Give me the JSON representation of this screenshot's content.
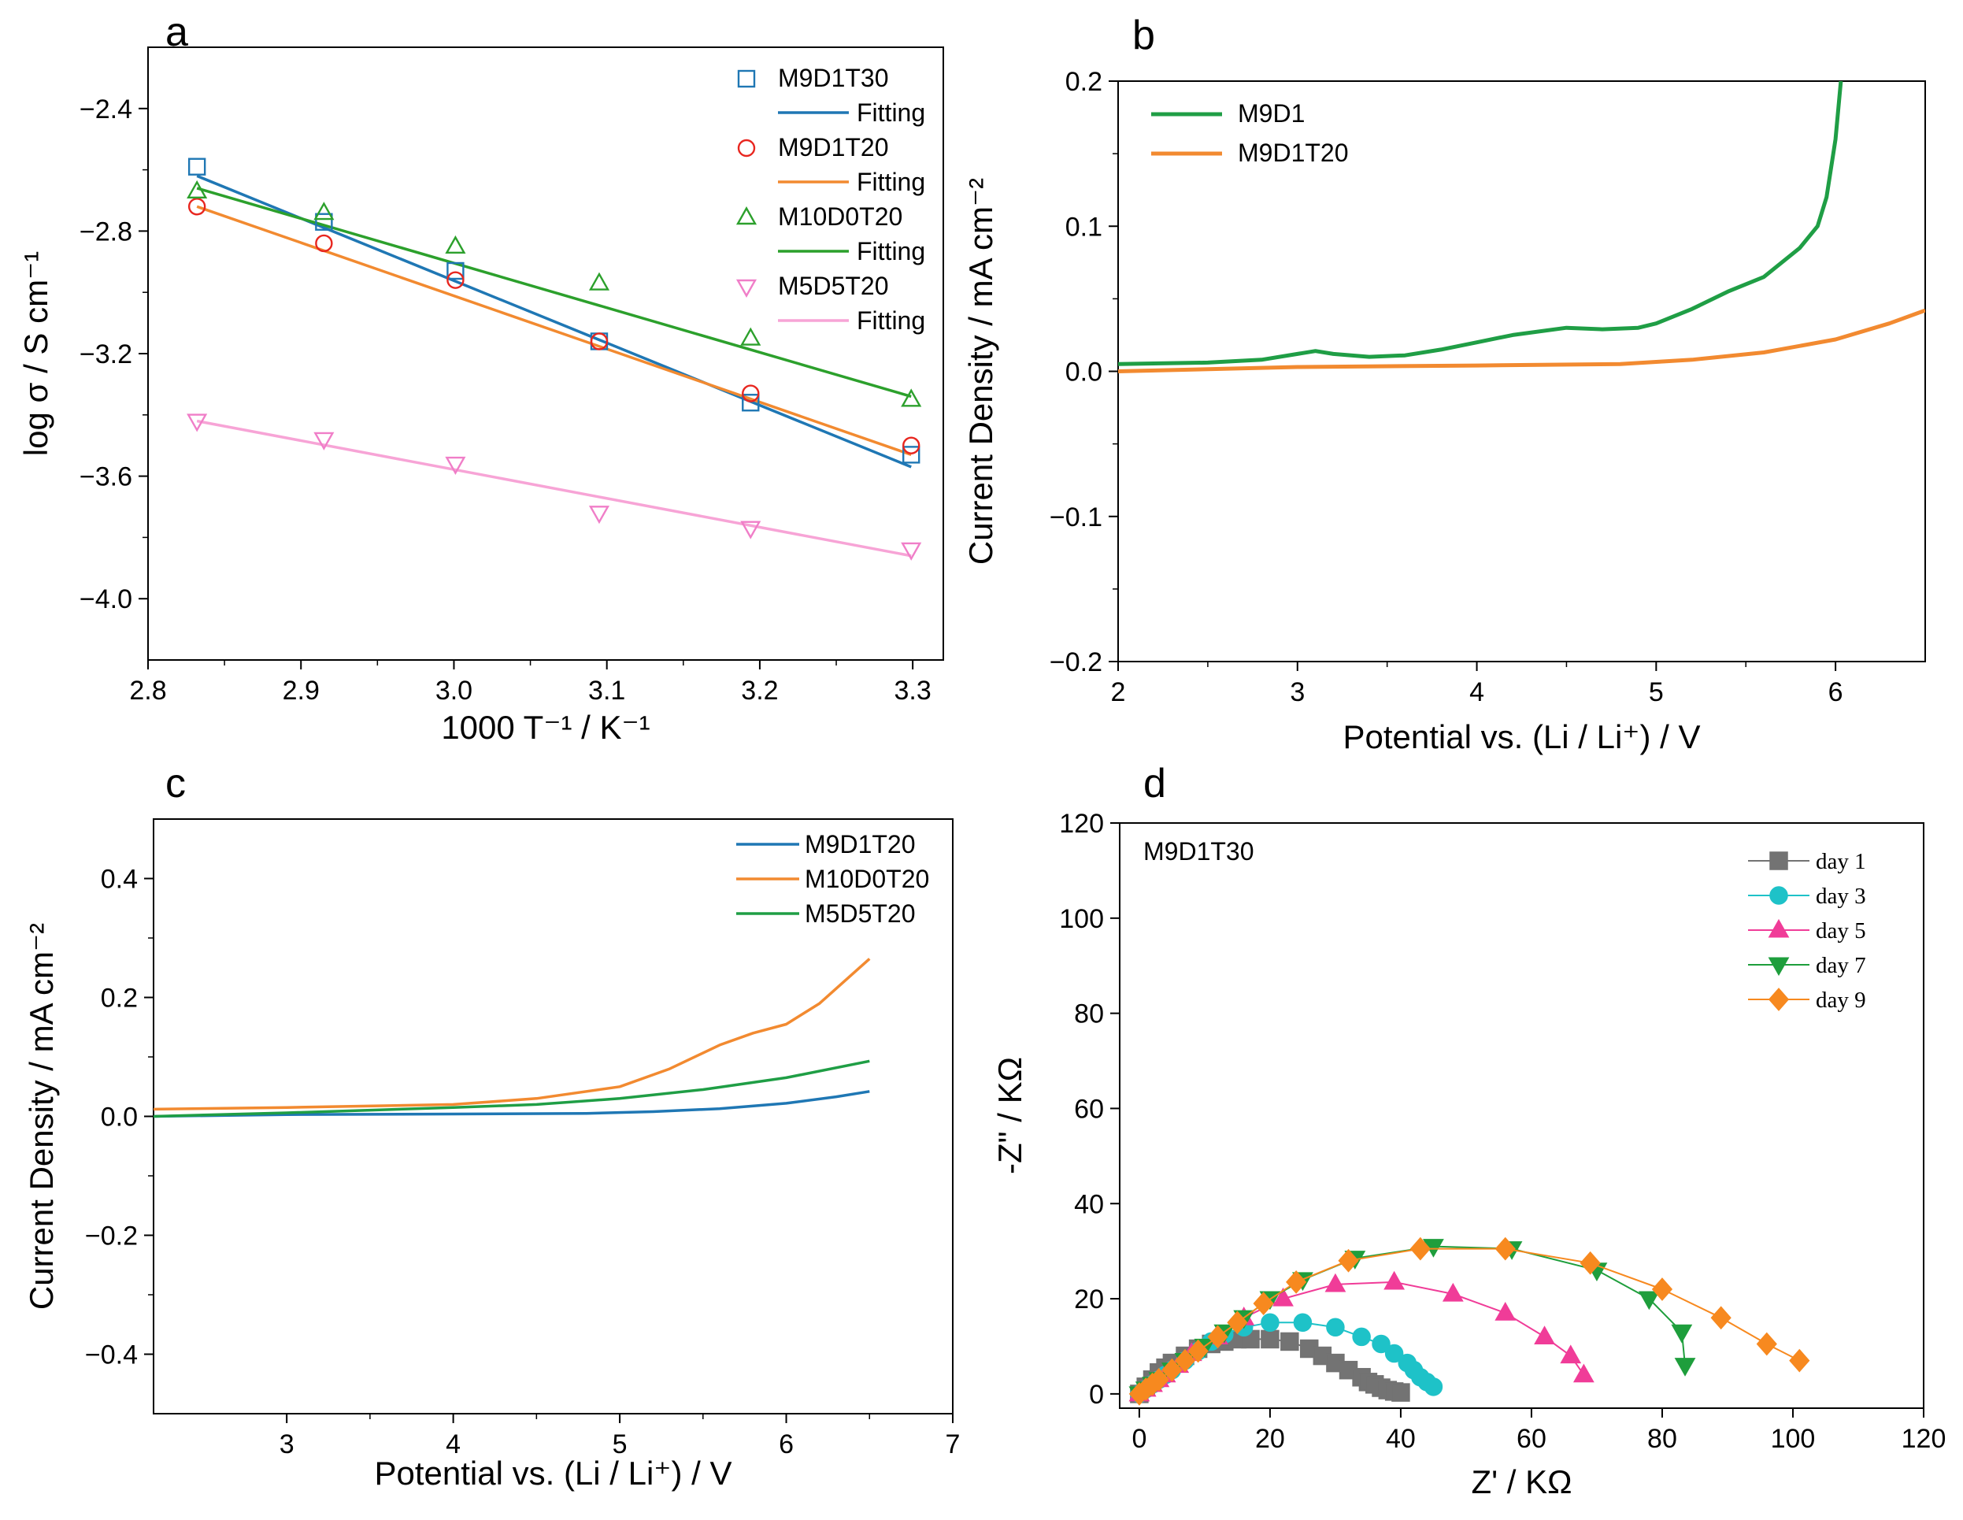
{
  "figure_title": "Four-panel electrolyte characterization figure",
  "chart_data": [
    {
      "panel": "a",
      "type": "scatter",
      "xlabel": "1000 T⁻¹ / K⁻¹",
      "ylabel": "log σ / S cm⁻¹",
      "xlim": [
        2.8,
        3.32
      ],
      "ylim": [
        -4.2,
        -2.2
      ],
      "xticks": [
        "2.8",
        "2.9",
        "3.0",
        "3.1",
        "3.2",
        "3.3"
      ],
      "yticks": [
        "−2.4",
        "−2.8",
        "−3.2",
        "−3.6",
        "−4.0"
      ],
      "x": [
        2.832,
        2.915,
        3.001,
        3.095,
        3.194,
        3.299
      ],
      "series": [
        {
          "name": "M9D1T30",
          "marker": "square",
          "color": "#1f77b4",
          "values": [
            -2.59,
            -2.77,
            -2.93,
            -3.16,
            -3.36,
            -3.53
          ],
          "fit_name": "Fitting",
          "fit": [
            -2.62,
            -3.57
          ]
        },
        {
          "name": "M9D1T20",
          "marker": "circle",
          "color": "#e8261f",
          "values": [
            -2.72,
            -2.84,
            -2.96,
            -3.16,
            -3.33,
            -3.5
          ],
          "fit_name": "Fitting",
          "fit": [
            -2.72,
            -3.53
          ],
          "fit_color": "#f28a30"
        },
        {
          "name": "M10D0T20",
          "marker": "triangle-up",
          "color": "#2ca02c",
          "values": [
            -2.67,
            -2.74,
            -2.85,
            -2.97,
            -3.15,
            -3.35
          ],
          "fit_name": "Fitting",
          "fit": [
            -2.66,
            -3.34
          ]
        },
        {
          "name": "M5D5T20",
          "marker": "triangle-down",
          "color": "#f07ec8",
          "values": [
            -3.42,
            -3.48,
            -3.56,
            -3.72,
            -3.77,
            -3.84
          ],
          "fit_name": "Fitting",
          "fit": [
            -3.42,
            -3.86
          ],
          "fit_color": "#f7a4d6"
        }
      ]
    },
    {
      "panel": "b",
      "type": "line",
      "xlabel": "Potential vs. (Li / Li⁺) / V",
      "ylabel": "Current Density / mA cm⁻²",
      "xlim": [
        2,
        6.5
      ],
      "ylim": [
        -0.2,
        0.2
      ],
      "xticks": [
        "2",
        "3",
        "4",
        "5",
        "6"
      ],
      "yticks": [
        "0.2",
        "0.1",
        "0.0",
        "−0.1",
        "−0.2"
      ],
      "series": [
        {
          "name": "M9D1",
          "color": "#1f9e45",
          "x": [
            2,
            2.5,
            2.8,
            3.0,
            3.1,
            3.2,
            3.4,
            3.6,
            3.8,
            4.0,
            4.2,
            4.5,
            4.7,
            4.9,
            5.0,
            5.2,
            5.4,
            5.6,
            5.7,
            5.8,
            5.9,
            5.95,
            6.0,
            6.03
          ],
          "values": [
            0.005,
            0.006,
            0.008,
            0.012,
            0.014,
            0.012,
            0.01,
            0.011,
            0.015,
            0.02,
            0.025,
            0.03,
            0.029,
            0.03,
            0.033,
            0.043,
            0.055,
            0.065,
            0.075,
            0.085,
            0.1,
            0.12,
            0.16,
            0.2
          ]
        },
        {
          "name": "M9D1T20",
          "color": "#f28a30",
          "x": [
            2,
            3,
            4,
            4.8,
            5.2,
            5.6,
            6.0,
            6.3,
            6.5
          ],
          "values": [
            0.0,
            0.003,
            0.004,
            0.005,
            0.008,
            0.013,
            0.022,
            0.033,
            0.042
          ]
        }
      ]
    },
    {
      "panel": "c",
      "type": "line",
      "xlabel": "Potential vs. (Li / Li⁺) / V",
      "ylabel": "Current Density / mA cm⁻²",
      "xlim": [
        2.2,
        7
      ],
      "ylim": [
        -0.5,
        0.5
      ],
      "xticks": [
        "3",
        "4",
        "5",
        "6",
        "7"
      ],
      "yticks": [
        "0.4",
        "0.2",
        "0.0",
        "−0.2",
        "−0.4"
      ],
      "series": [
        {
          "name": "M9D1T20",
          "color": "#1f77b4",
          "x": [
            2.2,
            3,
            4,
            4.8,
            5.2,
            5.6,
            6.0,
            6.3,
            6.5
          ],
          "values": [
            0.0,
            0.003,
            0.004,
            0.005,
            0.008,
            0.013,
            0.022,
            0.033,
            0.042
          ]
        },
        {
          "name": "M10D0T20",
          "color": "#f28a30",
          "x": [
            2.2,
            3,
            4,
            4.5,
            5.0,
            5.3,
            5.6,
            5.8,
            6.0,
            6.2,
            6.4,
            6.5
          ],
          "values": [
            0.012,
            0.015,
            0.02,
            0.03,
            0.05,
            0.08,
            0.12,
            0.14,
            0.155,
            0.19,
            0.24,
            0.265
          ]
        },
        {
          "name": "M5D5T20",
          "color": "#1f9e45",
          "x": [
            2.2,
            3,
            4,
            4.5,
            5.0,
            5.5,
            6.0,
            6.5
          ],
          "values": [
            0.0,
            0.006,
            0.015,
            0.02,
            0.03,
            0.045,
            0.065,
            0.093
          ]
        }
      ]
    },
    {
      "panel": "d",
      "type": "scatter",
      "annotation": "M9D1T30",
      "xlabel": "Z'  / KΩ",
      "ylabel": "-Z\" / KΩ",
      "xlim": [
        -3,
        120
      ],
      "ylim": [
        -3,
        120
      ],
      "xticks": [
        "0",
        "20",
        "40",
        "60",
        "80",
        "100",
        "120"
      ],
      "yticks": [
        "120",
        "100",
        "80",
        "60",
        "40",
        "20",
        "0"
      ],
      "series": [
        {
          "name": "day 1",
          "marker": "square",
          "color": "#737373",
          "x": [
            0,
            1,
            2,
            3,
            4,
            5,
            7,
            9,
            11,
            13,
            15,
            17,
            20,
            23,
            26,
            28,
            30,
            32,
            34,
            35,
            36,
            37,
            38,
            39,
            40
          ],
          "values": [
            0,
            1.5,
            3,
            4.5,
            5.5,
            6.5,
            8,
            9.5,
            10.5,
            11,
            11.5,
            11.5,
            11.5,
            11,
            9.5,
            8,
            6.5,
            5,
            3.5,
            2.5,
            2,
            1.3,
            0.8,
            0.5,
            0.3
          ]
        },
        {
          "name": "day 3",
          "marker": "circle",
          "color": "#1ec2c8",
          "x": [
            0,
            1,
            2,
            3,
            4,
            5,
            7,
            9,
            11,
            13,
            16,
            20,
            25,
            30,
            34,
            37,
            39,
            41,
            42,
            43,
            44,
            45
          ],
          "values": [
            0,
            1,
            2,
            3,
            4,
            5,
            7,
            9,
            11,
            12.5,
            14,
            15,
            15,
            14,
            12,
            10.5,
            8.5,
            6.5,
            5,
            3.5,
            2.5,
            1.5
          ]
        },
        {
          "name": "day 5",
          "marker": "triangle-up",
          "color": "#f03c98",
          "x": [
            0,
            1,
            2,
            3,
            4,
            6,
            8,
            12,
            16,
            22,
            30,
            39,
            48,
            56,
            62,
            66,
            68
          ],
          "values": [
            0,
            1,
            2,
            3,
            4,
            6,
            8.5,
            12,
            16,
            20,
            23,
            23.5,
            21,
            17,
            12,
            8,
            4
          ]
        },
        {
          "name": "day 7",
          "marker": "triangle-down",
          "color": "#1e9e3c",
          "x": [
            0,
            1,
            2,
            3,
            5,
            7,
            10,
            13,
            16,
            20,
            25,
            33,
            45,
            57,
            70,
            78,
            83,
            83.5
          ],
          "values": [
            0,
            1,
            2,
            3,
            5,
            7,
            10,
            13,
            16,
            20,
            24,
            28.5,
            31,
            30.5,
            26,
            20,
            13,
            6
          ]
        },
        {
          "name": "day 9",
          "marker": "diamond",
          "color": "#f7891f",
          "x": [
            0,
            1,
            2,
            3,
            5,
            7,
            9,
            12,
            15,
            19,
            24,
            32,
            43,
            56,
            69,
            80,
            89,
            96,
            101
          ],
          "values": [
            0,
            1,
            2,
            3,
            5,
            7,
            9,
            12,
            15,
            19,
            23.5,
            28,
            30.5,
            30.5,
            27.5,
            22,
            16,
            10.5,
            7
          ]
        }
      ]
    }
  ]
}
